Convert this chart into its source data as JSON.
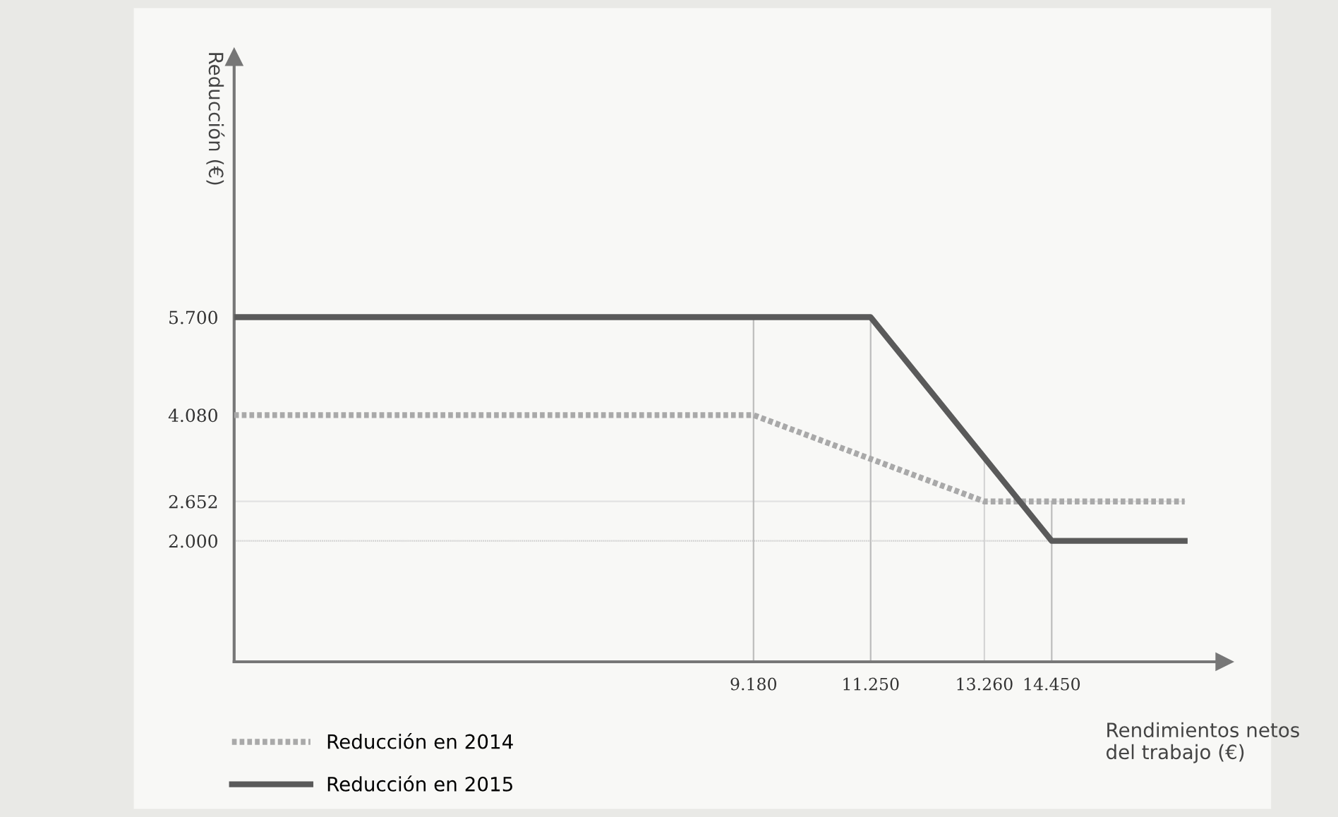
{
  "chart_data": {
    "type": "line",
    "ylabel": "Reducción (€)",
    "xlabel": "Rendimientos netos\ndel trabajo (€)",
    "series": [
      {
        "name": "Reducción en 2014",
        "color": "#a9a9a9",
        "line_style": "dotted",
        "x": [
          0,
          9180,
          13260,
          16800
        ],
        "values": [
          4080,
          4080,
          2652,
          2652
        ]
      },
      {
        "name": "Reducción en 2015",
        "color": "#5a5a5a",
        "line_style": "solid",
        "x": [
          0,
          11250,
          14450,
          16800
        ],
        "values": [
          5700,
          5700,
          2000,
          2000
        ]
      }
    ],
    "xlim": [
      0,
      17500
    ],
    "ylim": [
      0,
      10000
    ],
    "xticks": [
      {
        "value": 9180,
        "label": "9.180"
      },
      {
        "value": 11250,
        "label": "11.250"
      },
      {
        "value": 13260,
        "label": "13.260"
      },
      {
        "value": 14450,
        "label": "14.450"
      }
    ],
    "yticks": [
      {
        "value": 2000,
        "label": "2.000"
      },
      {
        "value": 2652,
        "label": "2.652"
      },
      {
        "value": 4080,
        "label": "4.080"
      },
      {
        "value": 5700,
        "label": "5.700"
      }
    ],
    "ref_lines": [
      {
        "axis": "y",
        "value": 2000,
        "color": "#cfcfcf",
        "line_style": "dotted"
      },
      {
        "axis": "y",
        "value": 2652,
        "color": "#e2e2e2",
        "line_style": "solid"
      },
      {
        "axis": "x",
        "value": 9180,
        "color": "#bdbdbd",
        "line_style": "solid"
      },
      {
        "axis": "x",
        "value": 11250,
        "color": "#bdbdbd",
        "line_style": "solid"
      },
      {
        "axis": "x",
        "value": 13260,
        "color": "#d5d5d5",
        "line_style": "solid"
      },
      {
        "axis": "x",
        "value": 14450,
        "color": "#bdbdbd",
        "line_style": "solid"
      }
    ],
    "grid": false,
    "legend": "bottom left",
    "marker": "none"
  }
}
